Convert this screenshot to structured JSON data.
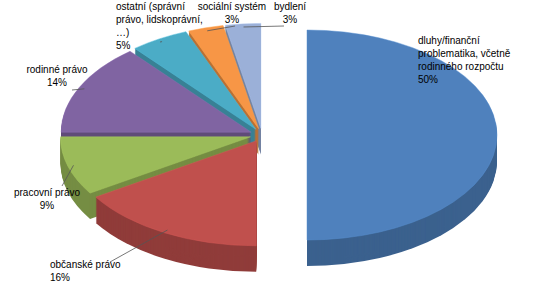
{
  "chart_data": {
    "type": "pie",
    "categories": [
      "dluhy/finanční problematika, včetně rodinného rozpočtu",
      "občanské právo",
      "pracovní právo",
      "rodinné právo",
      "ostatní (správní právo, lidskoprávní, …)",
      "sociální systém",
      "bydlení"
    ],
    "values": [
      50,
      16,
      9,
      14,
      5,
      3,
      3
    ],
    "value_labels": [
      "50%",
      "16%",
      "9%",
      "14%",
      "5%",
      "3%",
      "3%"
    ],
    "colors": [
      "#4f81bd",
      "#c0504d",
      "#9bbb59",
      "#8064a2",
      "#4bacc6",
      "#f79646",
      "#9bb0d8"
    ],
    "data_labels": true
  }
}
